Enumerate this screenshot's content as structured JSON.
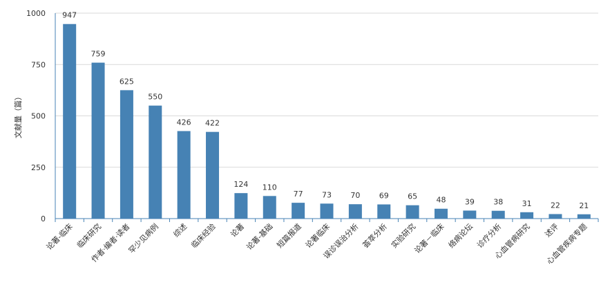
{
  "chart_data": {
    "type": "bar",
    "title": "",
    "xlabel": "",
    "ylabel": "文献量（篇）",
    "ylim": [
      0,
      1000
    ],
    "yticks": [
      0,
      250,
      500,
      750,
      1000
    ],
    "grid": true,
    "categories": [
      "论著-临床",
      "临床研究",
      "作者·编者·读者",
      "罕少见病例",
      "综述",
      "临床经验",
      "论著",
      "论著-基础",
      "短篇报道",
      "论著临床",
      "误诊误治分析",
      "荟萃分析",
      "实验研究",
      "论著－临床",
      "络病论坛",
      "诊疗分析",
      "心血管病研究",
      "述评",
      "心血管疾病专题"
    ],
    "values": [
      947,
      759,
      625,
      550,
      426,
      422,
      124,
      110,
      77,
      73,
      70,
      69,
      65,
      48,
      39,
      38,
      31,
      22,
      21
    ],
    "bar_color": "#4682b4"
  }
}
